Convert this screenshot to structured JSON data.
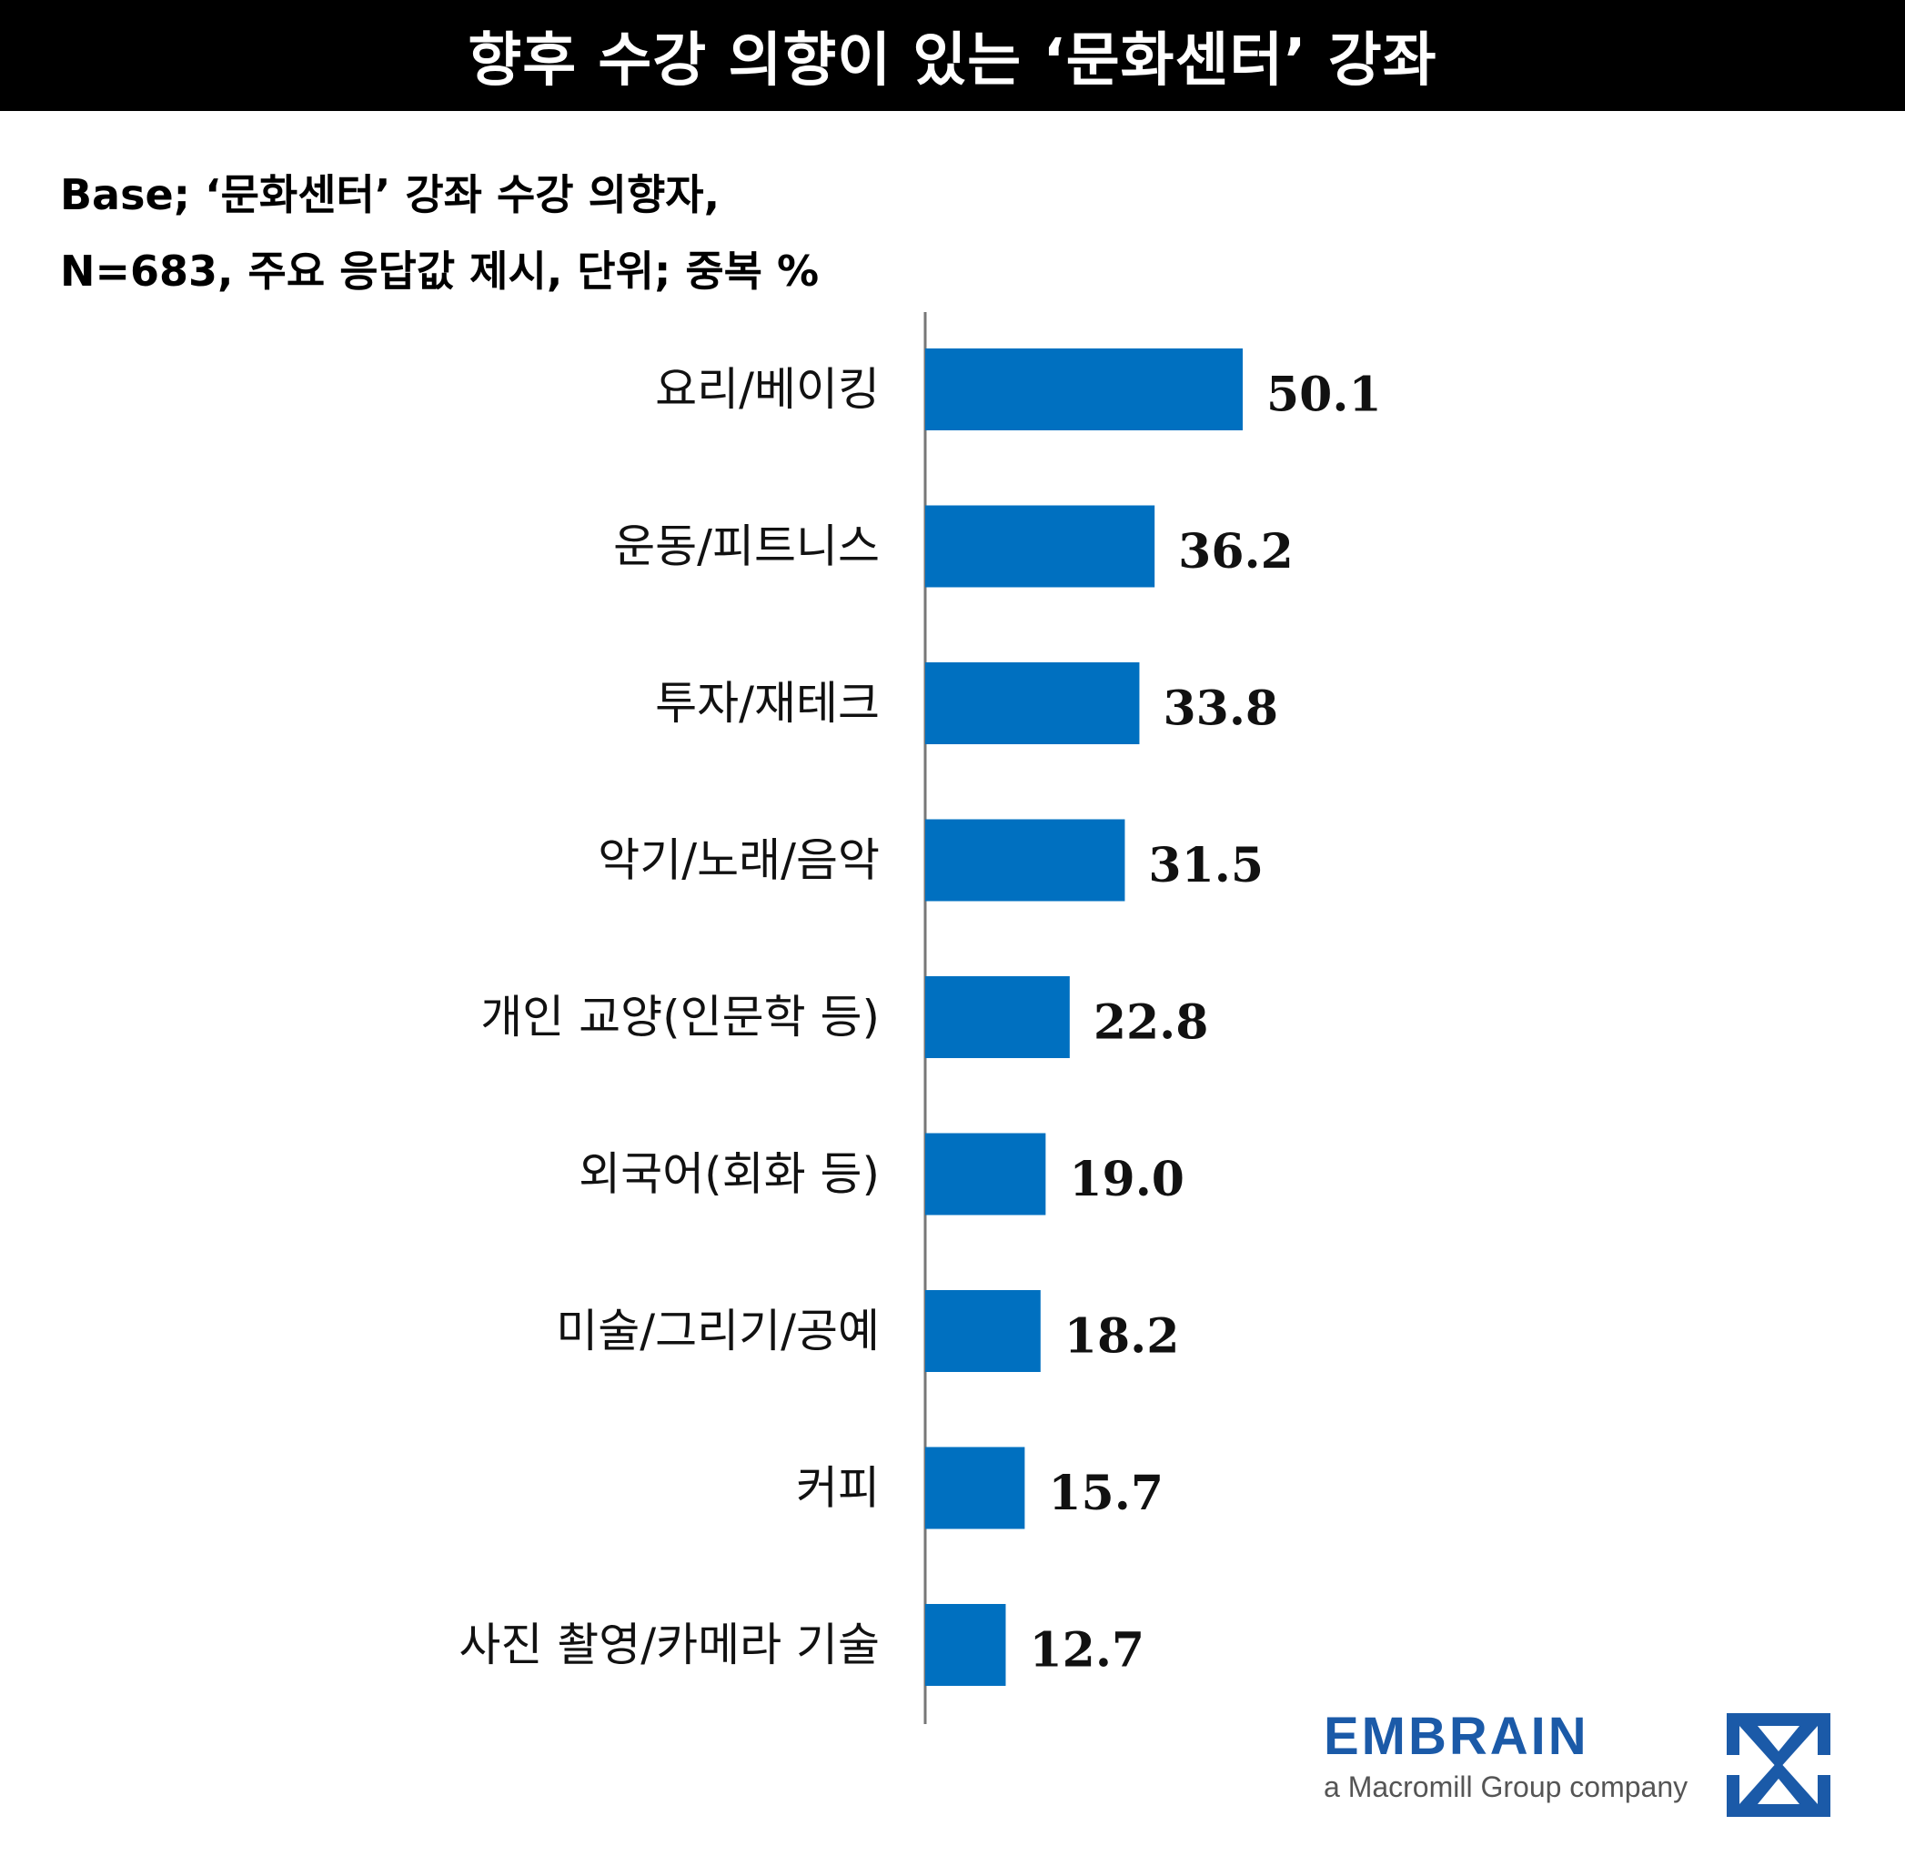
{
  "title": "향후 수강 의향이 있는 ‘문화센터’ 강좌",
  "subtitle_line1": "Base; ‘문화센터’ 강좌 수강 의향자,",
  "subtitle_line2": "N=683, 주요 응답값 제시, 단위; 중복 %",
  "chart_data": {
    "type": "bar",
    "orientation": "horizontal",
    "categories": [
      "요리/베이킹",
      "운동/피트니스",
      "투자/재테크",
      "악기/노래/음악",
      "개인 교양(인문학 등)",
      "외국어(회화 등)",
      "미술/그리기/공예",
      "커피",
      "사진 촬영/카메라 기술"
    ],
    "values": [
      50.1,
      36.2,
      33.8,
      31.5,
      22.8,
      19.0,
      18.2,
      15.7,
      12.7
    ],
    "value_labels": [
      "50.1",
      "36.2",
      "33.8",
      "31.5",
      "22.8",
      "19.0",
      "18.2",
      "15.7",
      "12.7"
    ],
    "bar_color": "#0070c0",
    "xlim": [
      0,
      60
    ],
    "grid": false,
    "legend": "none"
  },
  "logo": {
    "name": "EMBRAIN",
    "tagline": "a Macromill Group company",
    "color": "#1b5aa8",
    "icon": "embrain-logo-icon"
  }
}
